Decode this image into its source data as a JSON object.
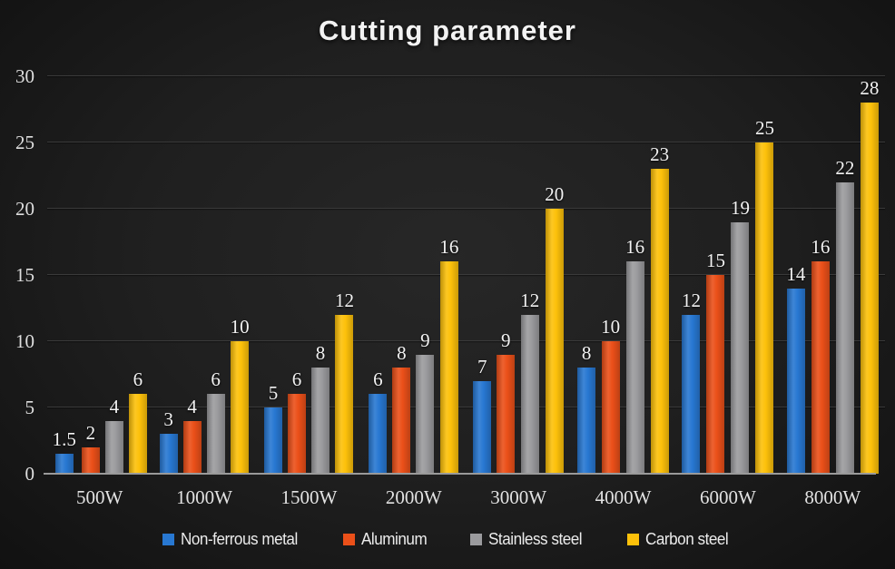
{
  "title": "Cutting parameter",
  "colors": {
    "background_center": "#272727",
    "background_edge": "#111111",
    "gridline": "#3a3a3a",
    "axis_line": "#9a9a9a",
    "label_text": "#f2f2f2"
  },
  "chart_data": {
    "type": "bar",
    "title": "Cutting parameter",
    "categories": [
      "500W",
      "1000W",
      "1500W",
      "2000W",
      "3000W",
      "4000W",
      "6000W",
      "8000W"
    ],
    "series": [
      {
        "name": "Non-ferrous metal",
        "color": "#2878d2",
        "values": [
          1.5,
          3,
          5,
          6,
          7,
          8,
          12,
          14
        ]
      },
      {
        "name": "Aluminum",
        "color": "#eb5019",
        "values": [
          2,
          4,
          6,
          8,
          9,
          10,
          15,
          16
        ]
      },
      {
        "name": "Stainless steel",
        "color": "#9b9b9e",
        "values": [
          4,
          6,
          8,
          9,
          12,
          16,
          19,
          22
        ]
      },
      {
        "name": "Carbon steel",
        "color": "#fdc10a",
        "values": [
          6,
          10,
          12,
          16,
          20,
          23,
          25,
          28
        ]
      }
    ],
    "xlabel": "",
    "ylabel": "",
    "ylim": [
      0,
      30
    ],
    "yticks": [
      0,
      5,
      10,
      15,
      20,
      25,
      30
    ],
    "grid": true,
    "legend_position": "bottom",
    "data_labels": true
  }
}
